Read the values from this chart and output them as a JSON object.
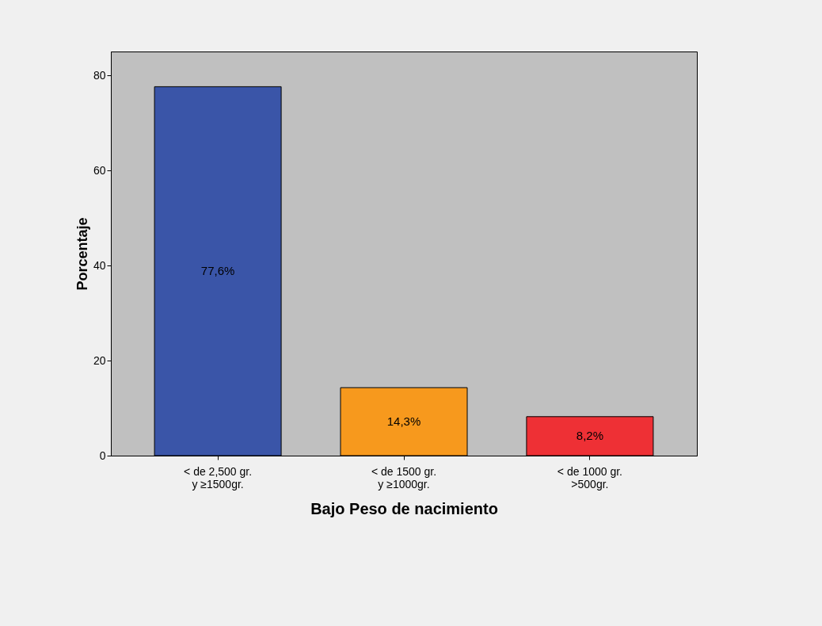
{
  "chart_data": {
    "type": "bar",
    "xlabel": "Bajo Peso de nacimiento",
    "ylabel": "Porcentaje",
    "categories": [
      "< de 2,500 gr.\ny ≥1500gr.",
      "< de 1500 gr.\ny ≥1000gr.",
      "< de 1000 gr.\n>500gr."
    ],
    "values": [
      77.6,
      14.3,
      8.2
    ],
    "colors": [
      "#3a55a8",
      "#f7991d",
      "#ee3035"
    ],
    "value_labels": [
      "77,6%",
      "14,3%",
      "8,2%"
    ],
    "ylim": [
      0,
      85
    ],
    "yticks": [
      0,
      20,
      40,
      60,
      80
    ],
    "grid": false
  }
}
